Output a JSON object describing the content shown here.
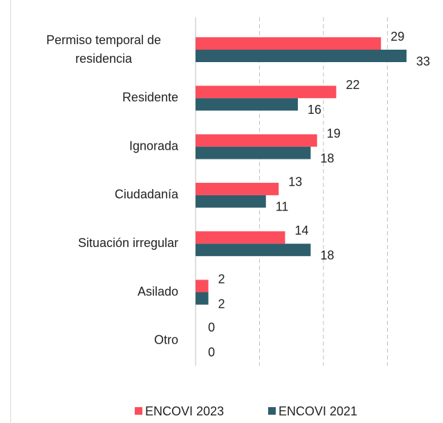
{
  "chart_data": {
    "type": "bar",
    "orientation": "horizontal",
    "categories": [
      [
        "Permiso temporal de",
        "residencia"
      ],
      "Residente",
      "Ignorada",
      "Ciudadanía",
      "Situación irregular",
      "Asilado",
      "Otro"
    ],
    "series": [
      {
        "name": "ENCOVI 2023",
        "color": "#fb4d5c",
        "values": [
          29,
          22,
          19,
          13,
          14,
          2,
          0
        ]
      },
      {
        "name": "ENCOVI 2021",
        "color": "#2e5e6c",
        "values": [
          33,
          16,
          18,
          11,
          18,
          2,
          0
        ]
      }
    ],
    "xlim": [
      0,
      37
    ],
    "xticks": [
      0,
      10,
      20,
      30
    ],
    "grid": true,
    "legend": "bottom"
  }
}
